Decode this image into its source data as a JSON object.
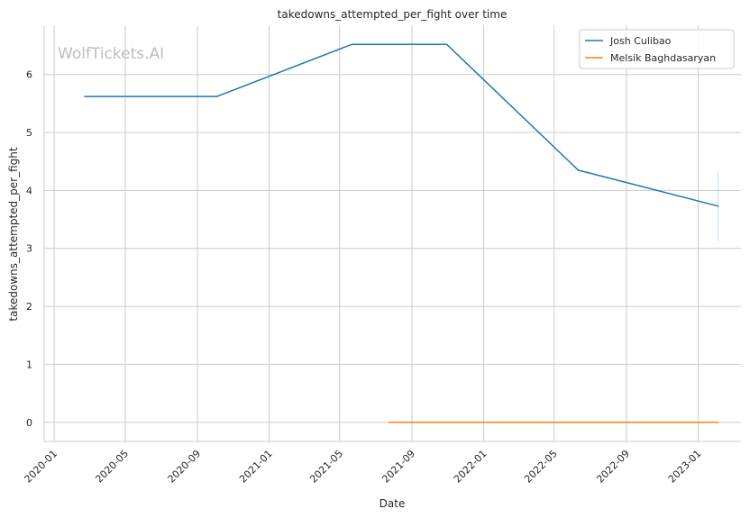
{
  "chart_data": {
    "type": "line",
    "title": "takedowns_attempted_per_fight over time",
    "xlabel": "Date",
    "ylabel": "takedowns_attempted_per_fight",
    "watermark": "WolfTickets.AI",
    "x_ticks": [
      "2020-01",
      "2020-05",
      "2020-09",
      "2021-01",
      "2021-05",
      "2021-09",
      "2022-01",
      "2022-05",
      "2022-09",
      "2023-01"
    ],
    "y_ticks": [
      "0",
      "1",
      "2",
      "3",
      "4",
      "5",
      "6"
    ],
    "xlim": [
      "2019-12-15",
      "2023-03-15"
    ],
    "ylim": [
      -0.33,
      6.85
    ],
    "grid": true,
    "legend_position": "top-right",
    "series": [
      {
        "name": "Josh Culibao",
        "color": "#1f77b4",
        "points": [
          {
            "x": "2020-02-22",
            "y": 5.62
          },
          {
            "x": "2020-10-04",
            "y": 5.62
          },
          {
            "x": "2021-05-22",
            "y": 6.52
          },
          {
            "x": "2021-10-30",
            "y": 6.52
          },
          {
            "x": "2022-06-11",
            "y": 4.35
          },
          {
            "x": "2023-02-04",
            "y": 3.73
          }
        ],
        "error_band": {
          "x": "2023-02-04",
          "low": 3.13,
          "high": 4.33
        }
      },
      {
        "name": "Melsik Baghdasaryan",
        "color": "#ff7f0e",
        "points": [
          {
            "x": "2021-07-24",
            "y": 0
          },
          {
            "x": "2023-02-04",
            "y": 0
          }
        ]
      }
    ]
  }
}
